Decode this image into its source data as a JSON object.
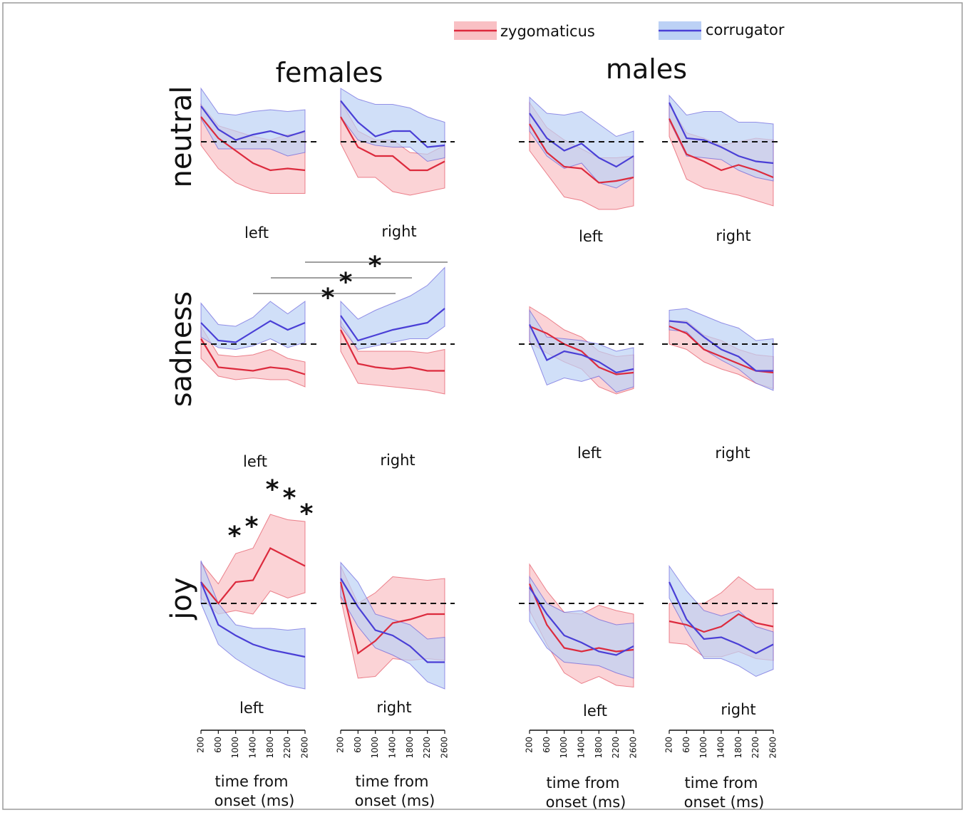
{
  "legend": [
    {
      "label": "zygomaticus",
      "line": "#dc2a3d",
      "band": "#f9c0c4"
    },
    {
      "label": "corrugator",
      "line": "#4a3fd6",
      "band": "#bcd1f5"
    }
  ],
  "columns": [
    "females",
    "males"
  ],
  "rows": [
    "neutral",
    "sadness",
    "joy"
  ],
  "sides": [
    "left",
    "right"
  ],
  "x_ticks": [
    "200",
    "600",
    "1000",
    "1400",
    "1800",
    "2200",
    "2600"
  ],
  "xlabel_line1": "time from",
  "xlabel_line2": "onset (ms)",
  "significance_marker": "*",
  "chart_data": {
    "type": "line",
    "x": [
      200,
      600,
      1000,
      1400,
      1800,
      2200,
      2600
    ],
    "x_unit": "ms",
    "ylim": [
      -6,
      6
    ],
    "y_axis_shown": false,
    "baseline": 0,
    "panels": [
      {
        "group": "females",
        "emotion": "neutral",
        "side": "left",
        "zygomaticus": {
          "mean": [
            1.4,
            0.2,
            -0.5,
            -1.2,
            -1.6,
            -1.5,
            -1.6
          ],
          "lower": [
            -0.2,
            -1.5,
            -2.3,
            -2.7,
            -2.9,
            -2.9,
            -2.9
          ],
          "upper": [
            2.1,
            0.9,
            0.6,
            0.3,
            0.1,
            0.4,
            0.5
          ]
        },
        "corrugator": {
          "mean": [
            2.0,
            0.7,
            0.1,
            0.4,
            0.6,
            0.3,
            0.6
          ],
          "lower": [
            1.3,
            -0.4,
            -0.4,
            -0.4,
            -0.4,
            -0.8,
            -0.6
          ],
          "upper": [
            3.0,
            1.6,
            1.5,
            1.7,
            1.8,
            1.7,
            1.8
          ]
        }
      },
      {
        "group": "females",
        "emotion": "neutral",
        "side": "right",
        "zygomaticus": {
          "mean": [
            1.4,
            -0.3,
            -0.8,
            -0.8,
            -1.6,
            -1.6,
            -1.1
          ],
          "lower": [
            -0.1,
            -2.0,
            -2.0,
            -2.8,
            -3.0,
            -2.8,
            -2.6
          ],
          "upper": [
            2.3,
            0.6,
            0.1,
            0.1,
            -0.6,
            -0.7,
            -0.2
          ]
        },
        "corrugator": {
          "mean": [
            2.3,
            1.1,
            0.3,
            0.6,
            0.6,
            -0.3,
            -0.2
          ],
          "lower": [
            1.4,
            0.1,
            -0.2,
            -0.3,
            -0.3,
            -1.1,
            -0.9
          ],
          "upper": [
            3.0,
            2.4,
            2.1,
            2.1,
            1.9,
            1.4,
            1.1
          ]
        }
      },
      {
        "group": "males",
        "emotion": "neutral",
        "side": "left",
        "zygomaticus": {
          "mean": [
            1.0,
            -0.6,
            -1.4,
            -1.5,
            -2.3,
            -2.2,
            -2.0
          ],
          "lower": [
            -0.5,
            -1.8,
            -3.1,
            -3.3,
            -3.8,
            -3.8,
            -3.6
          ],
          "upper": [
            2.2,
            0.8,
            0.1,
            -0.4,
            -0.9,
            -0.9,
            -0.8
          ]
        },
        "corrugator": {
          "mean": [
            1.6,
            0.2,
            -0.5,
            -0.1,
            -0.9,
            -1.4,
            -0.8
          ],
          "lower": [
            0.6,
            -0.8,
            -1.5,
            -1.2,
            -2.3,
            -2.6,
            -2.0
          ],
          "upper": [
            2.5,
            1.6,
            1.5,
            1.7,
            1.0,
            0.3,
            0.6
          ]
        }
      },
      {
        "group": "males",
        "emotion": "neutral",
        "side": "right",
        "zygomaticus": {
          "mean": [
            1.3,
            -0.7,
            -1.1,
            -1.6,
            -1.3,
            -1.6,
            -2.0
          ],
          "lower": [
            0.3,
            -2.1,
            -2.6,
            -2.8,
            -3.0,
            -3.3,
            -3.6
          ],
          "upper": [
            2.1,
            0.5,
            0.2,
            -0.2,
            0.0,
            0.2,
            0.1
          ]
        },
        "corrugator": {
          "mean": [
            2.2,
            0.2,
            0.1,
            -0.3,
            -0.8,
            -1.1,
            -1.2
          ],
          "lower": [
            1.2,
            -0.8,
            -0.9,
            -1.0,
            -1.6,
            -2.0,
            -2.2
          ],
          "upper": [
            2.6,
            1.5,
            1.7,
            1.7,
            1.1,
            1.1,
            1.0
          ]
        }
      },
      {
        "group": "females",
        "emotion": "sadness",
        "side": "left",
        "zygomaticus": {
          "mean": [
            0.3,
            -1.3,
            -1.4,
            -1.5,
            -1.3,
            -1.4,
            -1.7
          ],
          "lower": [
            -0.8,
            -1.8,
            -2.0,
            -1.9,
            -2.0,
            -2.0,
            -2.4
          ],
          "upper": [
            1.0,
            -0.6,
            -0.7,
            -0.6,
            -0.3,
            -0.8,
            -1.0
          ]
        },
        "corrugator": {
          "mean": [
            1.2,
            0.2,
            0.1,
            0.7,
            1.3,
            0.8,
            1.2
          ],
          "lower": [
            0.4,
            -0.2,
            -0.3,
            -0.1,
            0.3,
            -0.2,
            0.1
          ],
          "upper": [
            2.3,
            1.1,
            1.0,
            1.5,
            2.4,
            1.7,
            2.4
          ]
        }
      },
      {
        "group": "females",
        "emotion": "sadness",
        "side": "right",
        "zygomaticus": {
          "mean": [
            0.8,
            -1.1,
            -1.3,
            -1.4,
            -1.3,
            -1.5,
            -1.5
          ],
          "lower": [
            -0.4,
            -2.2,
            -2.3,
            -2.4,
            -2.5,
            -2.6,
            -2.8
          ],
          "upper": [
            1.3,
            -0.4,
            -0.4,
            -0.4,
            -0.4,
            -0.5,
            -0.3
          ]
        },
        "corrugator": {
          "mean": [
            1.6,
            0.2,
            0.5,
            0.8,
            1.0,
            1.2,
            2.0
          ],
          "lower": [
            1.0,
            -0.3,
            -0.1,
            0.1,
            0.3,
            0.3,
            1.0
          ],
          "upper": [
            2.4,
            1.4,
            1.9,
            2.3,
            2.7,
            3.3,
            4.3
          ]
        }
      },
      {
        "group": "males",
        "emotion": "sadness",
        "side": "left",
        "zygomaticus": {
          "mean": [
            1.0,
            0.6,
            0.0,
            -0.4,
            -1.3,
            -1.7,
            -1.6
          ],
          "lower": [
            0.1,
            -0.5,
            -1.0,
            -1.4,
            -2.4,
            -2.8,
            -2.5
          ],
          "upper": [
            2.1,
            1.5,
            0.8,
            0.4,
            -0.4,
            -0.7,
            -0.6
          ]
        },
        "corrugator": {
          "mean": [
            1.1,
            -0.9,
            -0.4,
            -0.6,
            -1.0,
            -1.6,
            -1.4
          ],
          "lower": [
            0.2,
            -2.3,
            -1.9,
            -2.1,
            -1.8,
            -2.7,
            -2.4
          ],
          "upper": [
            1.9,
            0.4,
            0.3,
            0.2,
            0.0,
            -0.4,
            -0.2
          ]
        }
      },
      {
        "group": "males",
        "emotion": "sadness",
        "side": "right",
        "zygomaticus": {
          "mean": [
            1.0,
            0.6,
            -0.3,
            -0.7,
            -1.1,
            -1.5,
            -1.6
          ],
          "lower": [
            0.0,
            -0.3,
            -1.0,
            -1.4,
            -1.7,
            -2.2,
            -2.5
          ],
          "upper": [
            1.3,
            1.3,
            0.5,
            0.2,
            -0.3,
            -0.6,
            -0.7
          ]
        },
        "corrugator": {
          "mean": [
            1.3,
            1.2,
            0.4,
            -0.3,
            -0.7,
            -1.5,
            -1.5
          ],
          "lower": [
            0.8,
            0.7,
            -0.3,
            -0.9,
            -1.4,
            -2.2,
            -2.6
          ],
          "upper": [
            1.9,
            2.0,
            1.6,
            1.2,
            0.9,
            0.2,
            0.3
          ]
        }
      },
      {
        "group": "females",
        "emotion": "joy",
        "side": "left",
        "zygomaticus": {
          "mean": [
            1.2,
            0.0,
            1.2,
            1.3,
            3.1,
            2.6,
            2.1
          ],
          "lower": [
            0.3,
            -0.6,
            -0.4,
            -0.6,
            0.7,
            0.3,
            0.6
          ],
          "upper": [
            2.3,
            1.1,
            2.8,
            3.1,
            5.0,
            4.7,
            4.6
          ]
        },
        "corrugator": {
          "mean": [
            1.2,
            -1.2,
            -1.8,
            -2.3,
            -2.6,
            -2.8,
            -3.0
          ],
          "lower": [
            0.0,
            -2.3,
            -3.1,
            -3.7,
            -4.2,
            -4.6,
            -4.8
          ],
          "upper": [
            2.4,
            0.0,
            -1.2,
            -1.4,
            -1.4,
            -1.5,
            -1.4
          ]
        }
      },
      {
        "group": "females",
        "emotion": "joy",
        "side": "right",
        "zygomaticus": {
          "mean": [
            1.2,
            -2.8,
            -2.1,
            -1.1,
            -0.9,
            -0.6,
            -0.6
          ],
          "lower": [
            0.3,
            -4.2,
            -4.1,
            -3.1,
            -3.2,
            -3.1,
            -3.2
          ],
          "upper": [
            2.1,
            0.0,
            0.6,
            1.5,
            1.4,
            1.3,
            1.4
          ]
        },
        "corrugator": {
          "mean": [
            1.4,
            -0.2,
            -1.5,
            -1.8,
            -2.4,
            -3.3,
            -3.3
          ],
          "lower": [
            0.4,
            -1.3,
            -2.5,
            -2.9,
            -3.4,
            -4.4,
            -4.8
          ],
          "upper": [
            2.3,
            1.2,
            -0.6,
            -0.9,
            -1.2,
            -2.0,
            -1.9
          ]
        }
      },
      {
        "group": "males",
        "emotion": "joy",
        "side": "right",
        "zygomaticus": {
          "mean": [
            -1.0,
            -1.2,
            -1.6,
            -1.3,
            -0.6,
            -1.1,
            -1.3
          ],
          "lower": [
            -2.2,
            -2.3,
            -3.0,
            -3.0,
            -2.7,
            -3.1,
            -3.2
          ],
          "upper": [
            0.0,
            0.0,
            0.0,
            0.6,
            1.5,
            0.8,
            0.8
          ]
        },
        "corrugator": {
          "mean": [
            1.2,
            -0.9,
            -2.0,
            -1.9,
            -2.3,
            -2.8,
            -2.3
          ],
          "lower": [
            0.3,
            -1.5,
            -3.1,
            -3.1,
            -3.5,
            -4.1,
            -3.7
          ],
          "upper": [
            2.1,
            0.7,
            -0.4,
            -0.7,
            -0.4,
            -1.3,
            -1.6
          ]
        }
      },
      {
        "group": "males",
        "emotion": "joy",
        "side": "left",
        "zygomaticus": {
          "mean": [
            1.1,
            -1.2,
            -2.5,
            -2.7,
            -2.5,
            -2.7,
            -2.6
          ],
          "lower": [
            -0.4,
            -2.3,
            -3.9,
            -4.5,
            -4.1,
            -4.6,
            -4.7
          ],
          "upper": [
            2.2,
            0.7,
            -0.5,
            -0.6,
            -0.1,
            -0.4,
            -0.6
          ]
        },
        "corrugator": {
          "mean": [
            0.9,
            -0.6,
            -1.8,
            -2.2,
            -2.7,
            -2.9,
            -2.4
          ],
          "lower": [
            -1.0,
            -2.5,
            -3.3,
            -3.4,
            -3.5,
            -3.9,
            -4.2
          ],
          "upper": [
            1.5,
            0.0,
            -0.5,
            -0.4,
            -0.9,
            -1.2,
            -1.1
          ]
        }
      }
    ],
    "significance": [
      {
        "panel": "females-sadness",
        "compare": "left vs right",
        "bars": 3
      },
      {
        "panel": "females-joy-left",
        "marks": 5
      }
    ]
  }
}
